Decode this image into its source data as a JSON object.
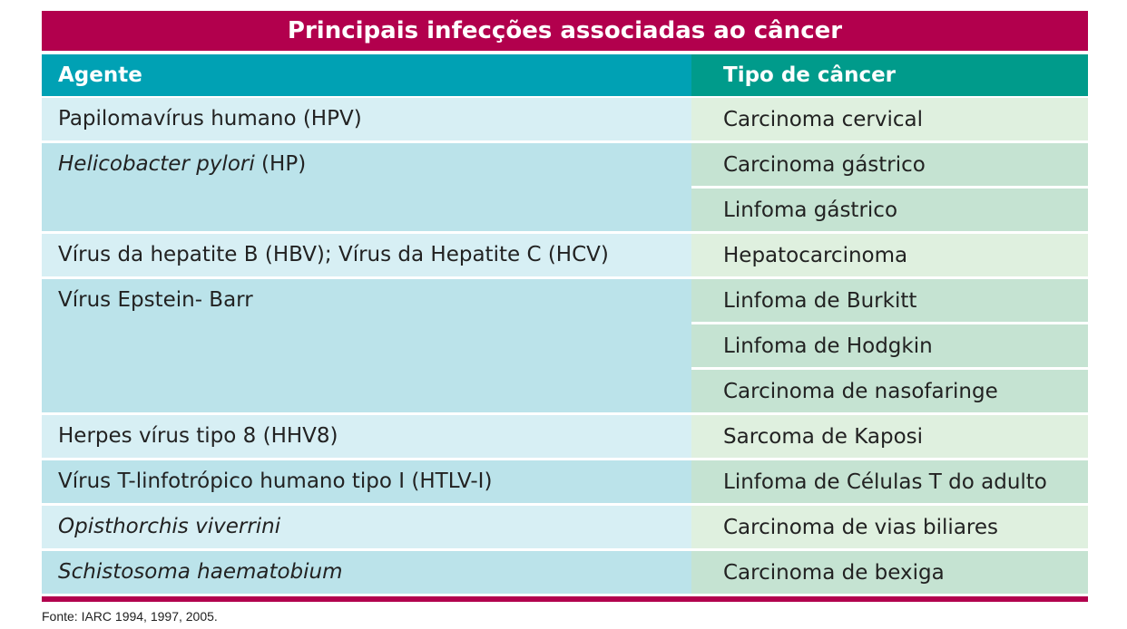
{
  "title": "Principais infecções associadas ao câncer",
  "headers": {
    "agent": "Agente",
    "cancer": "Tipo de câncer"
  },
  "rows": [
    {
      "agent": "Papilomavírus humano (HPV)",
      "cancers": [
        "Carcinoma cervical"
      ]
    },
    {
      "agent_italic": "Helicobacter pylori",
      "agent_rest": " (HP)",
      "cancers": [
        "Carcinoma gástrico",
        "Linfoma gástrico"
      ]
    },
    {
      "agent": "Vírus da hepatite B (HBV); Vírus da Hepatite C (HCV)",
      "cancers": [
        "Hepatocarcinoma"
      ]
    },
    {
      "agent": "Vírus Epstein- Barr",
      "cancers": [
        "Linfoma de Burkitt",
        "Linfoma de Hodgkin",
        "Carcinoma de nasofaringe"
      ]
    },
    {
      "agent": "Herpes vírus tipo 8 (HHV8)",
      "cancers": [
        "Sarcoma de Kaposi"
      ]
    },
    {
      "agent": "Vírus T-linfotrópico humano tipo I (HTLV-I)",
      "cancers": [
        "Linfoma de Células T do adulto"
      ]
    },
    {
      "agent_italic": "Opisthorchis viverrini",
      "cancers": [
        "Carcinoma de vias biliares"
      ]
    },
    {
      "agent_italic": "Schistosoma haematobium",
      "cancers": [
        "Carcinoma de bexiga"
      ]
    }
  ],
  "source": "Fonte: IARC 1994, 1997, 2005.",
  "colors": {
    "title_bg": "#b2004d",
    "agent_header": "#00a1b4",
    "cancer_header": "#009b8b"
  }
}
